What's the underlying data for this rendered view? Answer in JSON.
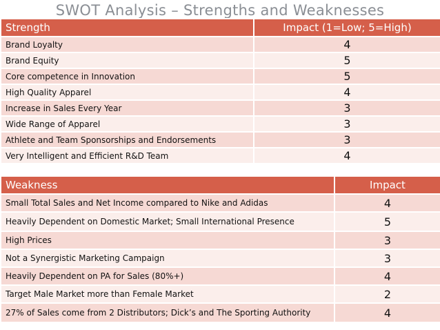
{
  "title": "SWOT Analysis – Strengths and Weaknesses",
  "strengths": {
    "header": {
      "name": "Strength",
      "impact": "Impact (1=Low; 5=High)"
    },
    "rows": [
      {
        "name": "Brand Loyalty",
        "impact": "4"
      },
      {
        "name": "Brand Equity",
        "impact": "5"
      },
      {
        "name": "Core competence in Innovation",
        "impact": "5"
      },
      {
        "name": "High Quality Apparel",
        "impact": "4"
      },
      {
        "name": "Increase in Sales Every Year",
        "impact": "3"
      },
      {
        "name": "Wide Range of Apparel",
        "impact": "3"
      },
      {
        "name": "Athlete and Team Sponsorships and Endorsements",
        "impact": "3"
      },
      {
        "name": "Very Intelligent and Efficient R&D Team",
        "impact": "4"
      }
    ]
  },
  "weaknesses": {
    "header": {
      "name": "Weakness",
      "impact": "Impact"
    },
    "rows": [
      {
        "name": "Small Total Sales and Net Income compared to Nike and Adidas",
        "impact": "4"
      },
      {
        "name": "Heavily Dependent on Domestic Market; Small International Presence",
        "impact": "5"
      },
      {
        "name": "High Prices",
        "impact": "3"
      },
      {
        "name": "Not a Synergistic Marketing Campaign",
        "impact": "3"
      },
      {
        "name": "Heavily Dependent on PA for Sales (80%+)",
        "impact": "4"
      },
      {
        "name": "Target Male Market more than Female Market",
        "impact": "2"
      },
      {
        "name": "27% of Sales come from 2 Distributors; Dick’s and The Sporting Authority",
        "impact": "4"
      }
    ]
  },
  "colors": {
    "header": "#d55f4a",
    "row_odd": "#f6d9d4",
    "row_even": "#fbeeeb",
    "title": "#8a8e94"
  }
}
